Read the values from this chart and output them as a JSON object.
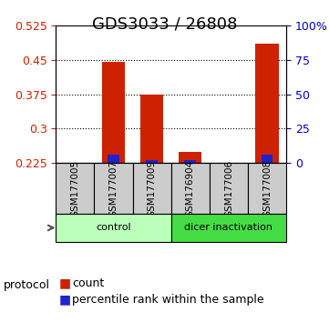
{
  "title": "GDS3033 / 26808",
  "samples": [
    "GSM177005",
    "GSM177007",
    "GSM177009",
    "GSM176904",
    "GSM177006",
    "GSM177008"
  ],
  "red_values": [
    0.2255,
    0.445,
    0.375,
    0.248,
    0.2255,
    0.485
  ],
  "blue_values": [
    0.2255,
    0.242,
    0.23,
    0.23,
    0.2255,
    0.242
  ],
  "ymin": 0.225,
  "ymax": 0.525,
  "yticks": [
    0.225,
    0.3,
    0.375,
    0.45,
    0.525
  ],
  "ytick_labels": [
    "0.225",
    "0.3",
    "0.375",
    "0.45",
    "0.525"
  ],
  "right_yticks": [
    0,
    25,
    50,
    75,
    100
  ],
  "right_ytick_labels": [
    "0",
    "25",
    "50",
    "75",
    "100%"
  ],
  "groups": [
    {
      "label": "control",
      "indices": [
        0,
        1,
        2
      ],
      "color": "#aaffaa"
    },
    {
      "label": "dicer inactivation",
      "indices": [
        3,
        4,
        5
      ],
      "color": "#44dd44"
    }
  ],
  "group_colors": [
    "#bbffbb",
    "#44dd44"
  ],
  "protocol_label": "protocol",
  "red_color": "#cc2200",
  "blue_color": "#2222cc",
  "bar_width": 0.6,
  "label_bg_color": "#cccccc",
  "plot_bg_color": "#ffffff",
  "title_fontsize": 13,
  "tick_fontsize": 9,
  "legend_fontsize": 9
}
